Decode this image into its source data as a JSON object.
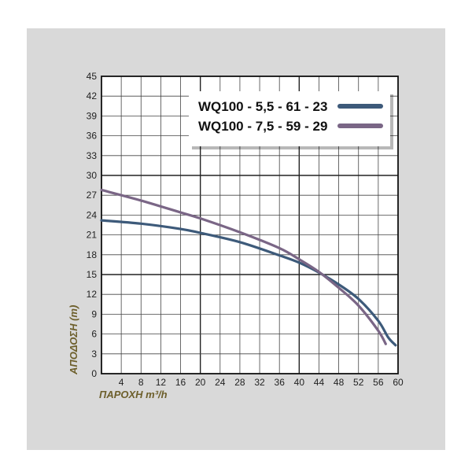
{
  "chart_data": {
    "type": "line",
    "title": "",
    "xlabel": "ΠΑΡΟΧΗ m³/h",
    "ylabel": "ΑΠΟΔΟΣΗ (m)",
    "xlim": [
      0,
      60
    ],
    "ylim": [
      0,
      45
    ],
    "x_ticks": [
      "4",
      "8",
      "12",
      "16",
      "20",
      "24",
      "28",
      "32",
      "36",
      "40",
      "44",
      "48",
      "52",
      "56",
      "60"
    ],
    "y_ticks": [
      "0",
      "3",
      "6",
      "9",
      "12",
      "15",
      "18",
      "21",
      "24",
      "27",
      "30",
      "33",
      "36",
      "39",
      "42",
      "45"
    ],
    "grid": true,
    "legend_position": "top-right",
    "series": [
      {
        "name": "WQ100 - 5,5 - 61 - 23",
        "color": "#3d5a7a",
        "points": [
          [
            0,
            23.2
          ],
          [
            8,
            22.7
          ],
          [
            16,
            21.9
          ],
          [
            20,
            21.3
          ],
          [
            28,
            19.9
          ],
          [
            36,
            17.9
          ],
          [
            40,
            16.8
          ],
          [
            44,
            15.3
          ],
          [
            48,
            13.5
          ],
          [
            52,
            11.3
          ],
          [
            56,
            8.0
          ],
          [
            58,
            5.5
          ],
          [
            59.5,
            4.3
          ]
        ]
      },
      {
        "name": "WQ100 - 7,5 - 59 - 29",
        "color": "#7a6686",
        "points": [
          [
            0,
            27.8
          ],
          [
            8,
            26.2
          ],
          [
            16,
            24.4
          ],
          [
            20,
            23.5
          ],
          [
            28,
            21.4
          ],
          [
            36,
            19.0
          ],
          [
            40,
            17.3
          ],
          [
            44,
            15.4
          ],
          [
            48,
            13.0
          ],
          [
            52,
            10.3
          ],
          [
            56,
            6.5
          ],
          [
            57.5,
            4.5
          ]
        ]
      }
    ]
  }
}
